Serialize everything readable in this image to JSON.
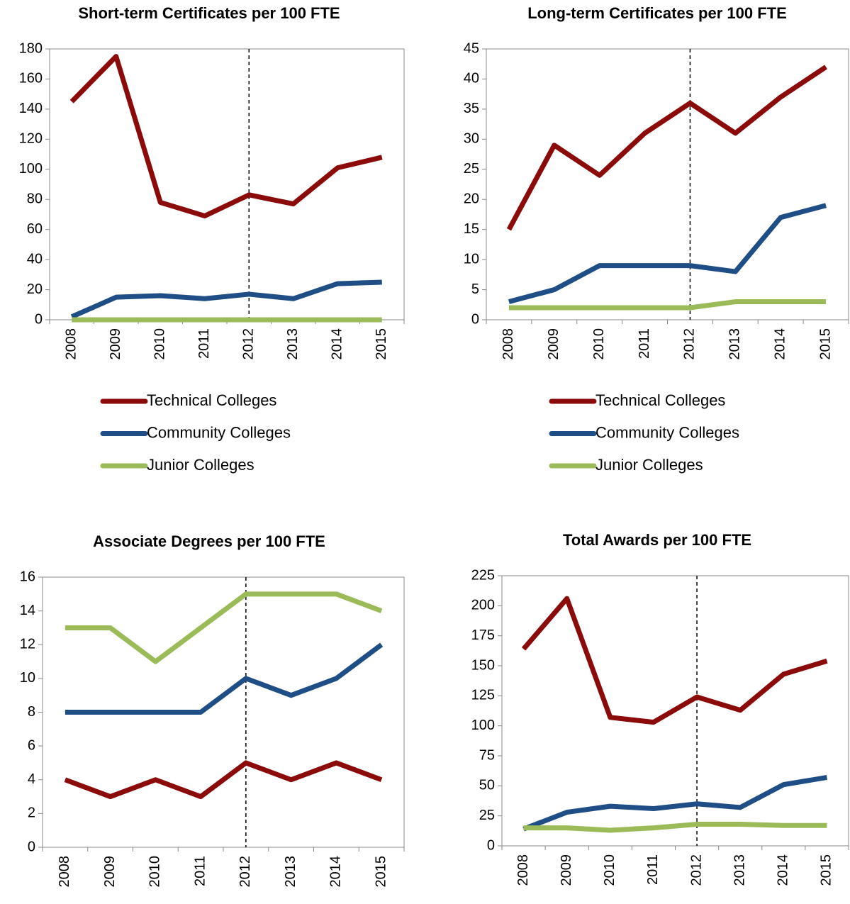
{
  "chart_data": [
    {
      "type": "line",
      "title": "Short-term Certificates per 100 FTE",
      "categories": [
        "2008",
        "2009",
        "2010",
        "2011",
        "2012",
        "2013",
        "2014",
        "2015"
      ],
      "ylim": [
        0,
        180
      ],
      "yticks": [
        0,
        20,
        40,
        60,
        80,
        100,
        120,
        140,
        160,
        180
      ],
      "reference_line_category": "2012",
      "legend": true,
      "series": [
        {
          "name": "Technical Colleges",
          "color": "#8b0a0a",
          "values": [
            145,
            175,
            78,
            69,
            83,
            77,
            101,
            108
          ]
        },
        {
          "name": "Community Colleges",
          "color": "#1f4e86",
          "values": [
            2,
            15,
            16,
            14,
            17,
            14,
            24,
            25
          ]
        },
        {
          "name": "Junior Colleges",
          "color": "#9bbb59",
          "values": [
            0,
            0,
            0,
            0,
            0,
            0,
            0,
            0
          ]
        }
      ]
    },
    {
      "type": "line",
      "title": "Long-term Certificates per 100 FTE",
      "categories": [
        "2008",
        "2009",
        "2010",
        "2011",
        "2012",
        "2013",
        "2014",
        "2015"
      ],
      "ylim": [
        0,
        45
      ],
      "yticks": [
        0,
        5,
        10,
        15,
        20,
        25,
        30,
        35,
        40,
        45
      ],
      "reference_line_category": "2012",
      "legend": true,
      "series": [
        {
          "name": "Technical Colleges",
          "color": "#8b0a0a",
          "values": [
            15,
            29,
            24,
            31,
            36,
            31,
            37,
            42
          ]
        },
        {
          "name": "Community Colleges",
          "color": "#1f4e86",
          "values": [
            3,
            5,
            9,
            9,
            9,
            8,
            17,
            19
          ]
        },
        {
          "name": "Junior Colleges",
          "color": "#9bbb59",
          "values": [
            2,
            2,
            2,
            2,
            2,
            3,
            3,
            3
          ]
        }
      ]
    },
    {
      "type": "line",
      "title": "Associate Degrees per 100 FTE",
      "categories": [
        "2008",
        "2009",
        "2010",
        "2011",
        "2012",
        "2013",
        "2014",
        "2015"
      ],
      "ylim": [
        0,
        16
      ],
      "yticks": [
        0,
        2,
        4,
        6,
        8,
        10,
        12,
        14,
        16
      ],
      "reference_line_category": "2012",
      "legend": false,
      "series": [
        {
          "color": "#8b0a0a",
          "values": [
            4,
            3,
            4,
            3,
            5,
            4,
            5,
            4
          ]
        },
        {
          "color": "#1f4e86",
          "values": [
            8,
            8,
            8,
            8,
            10,
            9,
            10,
            12
          ]
        },
        {
          "color": "#9bbb59",
          "values": [
            13,
            13,
            11,
            13,
            15,
            15,
            15,
            14
          ]
        }
      ]
    },
    {
      "type": "line",
      "title": "Total Awards per 100 FTE",
      "categories": [
        "2008",
        "2009",
        "2010",
        "2011",
        "2012",
        "2013",
        "2014",
        "2015"
      ],
      "ylim": [
        0,
        225
      ],
      "yticks": [
        0,
        25,
        50,
        75,
        100,
        125,
        150,
        175,
        200,
        225
      ],
      "reference_line_category": "2012",
      "legend": false,
      "series": [
        {
          "color": "#8b0a0a",
          "values": [
            164,
            206,
            107,
            103,
            124,
            113,
            143,
            154
          ]
        },
        {
          "color": "#1f4e86",
          "values": [
            14,
            28,
            33,
            31,
            35,
            32,
            51,
            57
          ]
        },
        {
          "color": "#9bbb59",
          "values": [
            15,
            15,
            13,
            15,
            18,
            18,
            17,
            17
          ]
        }
      ]
    }
  ]
}
